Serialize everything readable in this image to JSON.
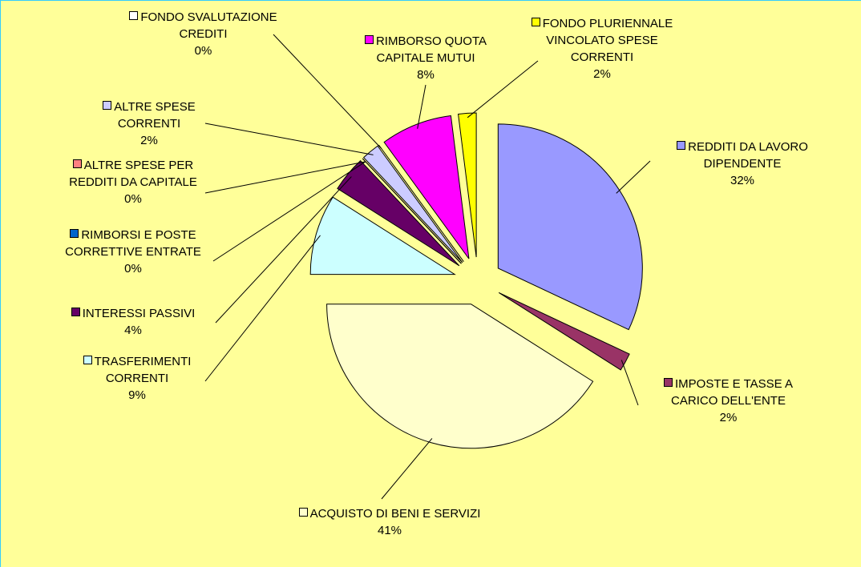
{
  "chart_data": {
    "type": "pie",
    "categories": [
      "REDDITI DA LAVORO DIPENDENTE",
      "IMPOSTE E TASSE A CARICO DELL'ENTE",
      "ACQUISTO DI BENI E SERVIZI",
      "TRASFERIMENTI CORRENTI",
      "INTERESSI PASSIVI",
      "RIMBORSI E POSTE CORRETTIVE ENTRATE",
      "ALTRE SPESE PER REDDITI DA CAPITALE",
      "ALTRE SPESE CORRENTI",
      "FONDO SVALUTAZIONE CREDITI",
      "RIMBORSO QUOTA CAPITALE MUTUI",
      "FONDO PLURIENNALE VINCOLATO SPESE CORRENTI"
    ],
    "values": [
      32,
      2,
      41,
      9,
      4,
      0,
      0,
      2,
      0,
      8,
      2
    ],
    "value_labels": [
      "32%",
      "2%",
      "41%",
      "9%",
      "4%",
      "0%",
      "0%",
      "2%",
      "0%",
      "8%",
      "2%"
    ],
    "colors": [
      "#9999ff",
      "#993366",
      "#ffffcc",
      "#ccffff",
      "#660066",
      "#0066cc",
      "#ff8080",
      "#ccccff",
      "#ffffff",
      "#ff00ff",
      "#ffff00"
    ]
  }
}
